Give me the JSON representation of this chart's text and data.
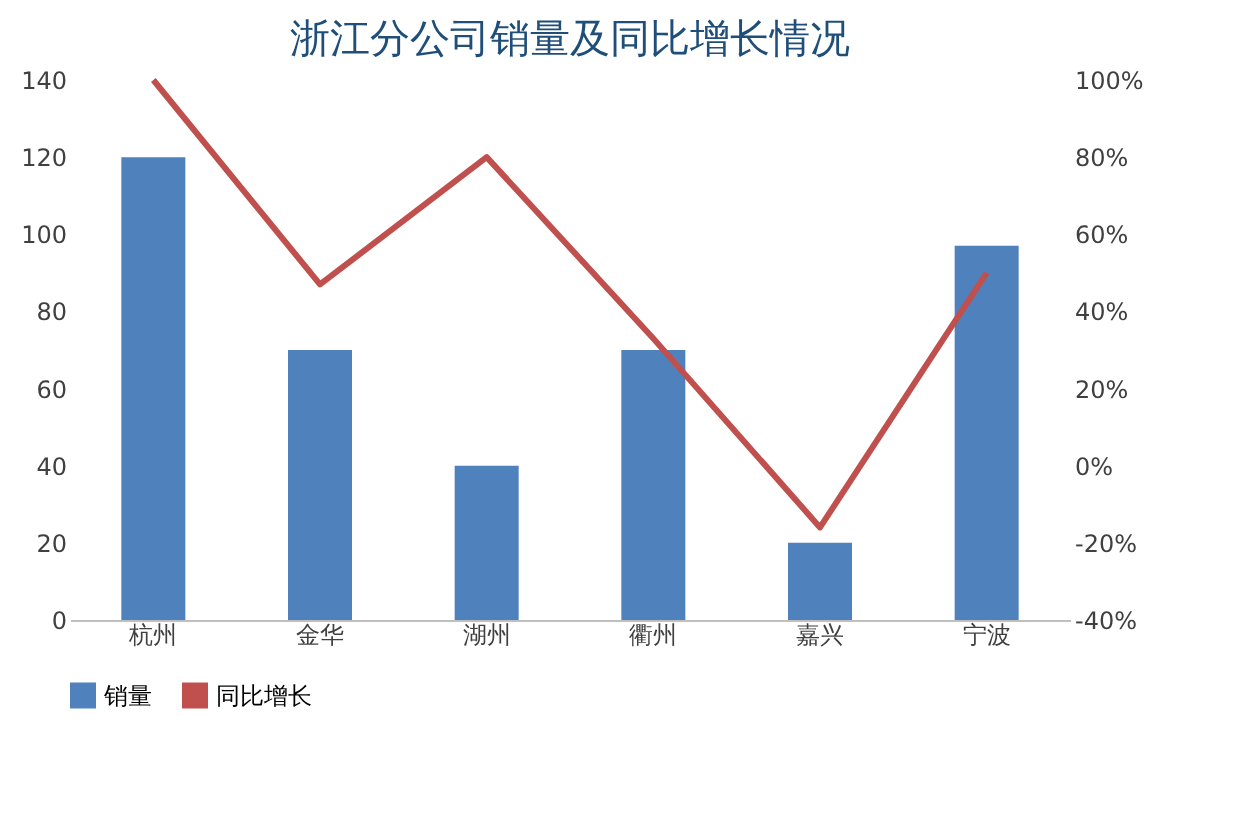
{
  "chart_data": {
    "type": "bar",
    "title": "浙江分公司销量及同比增长情况",
    "categories": [
      "杭州",
      "金华",
      "湖州",
      "衢州",
      "嘉兴",
      "宁波"
    ],
    "series": [
      {
        "name": "销量",
        "color": "#4f81bd",
        "values": [
          120,
          70,
          40,
          70,
          20,
          97
        ]
      },
      {
        "name": "同比增长",
        "type": "line",
        "axis": "y2",
        "color": "#c0504d",
        "values": [
          100,
          47,
          80,
          33,
          -16,
          50
        ]
      }
    ],
    "ylim": [
      0,
      140
    ],
    "yticks": [
      0,
      20,
      40,
      60,
      80,
      100,
      120,
      140
    ],
    "y2lim": [
      -40,
      100
    ],
    "y2ticks": [
      {
        "value": -40,
        "label": "-40%"
      },
      {
        "value": -20,
        "label": "-20%"
      },
      {
        "value": 0,
        "label": "0%"
      },
      {
        "value": 20,
        "label": "20%"
      },
      {
        "value": 40,
        "label": "40%"
      },
      {
        "value": 60,
        "label": "60%"
      },
      {
        "value": 80,
        "label": "80%"
      },
      {
        "value": 100,
        "label": "100%"
      }
    ],
    "grid": false,
    "legend": "bottom"
  }
}
